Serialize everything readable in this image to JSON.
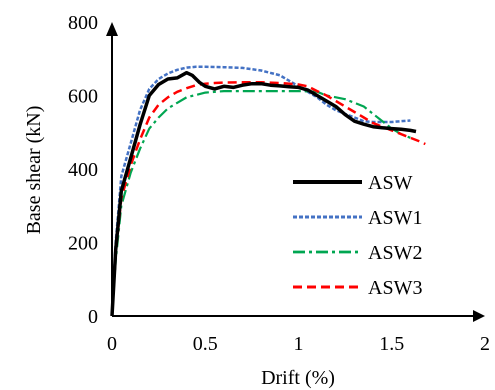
{
  "chart_data": {
    "type": "line",
    "xlabel": "Drift (%)",
    "ylabel": "Base shear (kN)",
    "xlim": [
      0,
      2
    ],
    "ylim": [
      0,
      800
    ],
    "x_ticks": [
      "0",
      "0.5",
      "1",
      "1.5",
      "2"
    ],
    "y_ticks": [
      "0",
      "200",
      "400",
      "600",
      "800"
    ],
    "x_tick_values": [
      0,
      0.5,
      1,
      1.5,
      2
    ],
    "y_tick_values": [
      0,
      200,
      400,
      600,
      800
    ],
    "grid": false,
    "legend_position": "right",
    "series": [
      {
        "name": "ASW",
        "color": "#000000",
        "style": "solid",
        "x": [
          0,
          0.02,
          0.05,
          0.1,
          0.15,
          0.2,
          0.25,
          0.3,
          0.35,
          0.4,
          0.43,
          0.47,
          0.5,
          0.55,
          0.6,
          0.65,
          0.7,
          0.75,
          0.8,
          0.85,
          0.9,
          0.95,
          1.0,
          1.05,
          1.1,
          1.15,
          1.2,
          1.25,
          1.3,
          1.35,
          1.4,
          1.45,
          1.5,
          1.55,
          1.6,
          1.63
        ],
        "y": [
          0,
          180,
          340,
          430,
          520,
          600,
          630,
          645,
          648,
          662,
          655,
          635,
          625,
          618,
          625,
          622,
          628,
          632,
          632,
          628,
          626,
          624,
          622,
          615,
          600,
          585,
          570,
          548,
          530,
          522,
          515,
          512,
          510,
          508,
          505,
          502
        ]
      },
      {
        "name": "ASW1",
        "color": "#4472c4",
        "style": "dotted",
        "x": [
          0,
          0.02,
          0.05,
          0.1,
          0.15,
          0.2,
          0.25,
          0.3,
          0.35,
          0.4,
          0.45,
          0.5,
          0.6,
          0.7,
          0.8,
          0.9,
          1.0,
          1.05,
          1.1,
          1.15,
          1.2,
          1.25,
          1.3,
          1.35,
          1.4,
          1.45,
          1.5,
          1.55,
          1.6
        ],
        "y": [
          0,
          200,
          380,
          470,
          560,
          618,
          645,
          660,
          670,
          676,
          678,
          678,
          677,
          675,
          668,
          655,
          625,
          610,
          595,
          575,
          560,
          550,
          540,
          530,
          528,
          528,
          528,
          530,
          532
        ]
      },
      {
        "name": "ASW2",
        "color": "#00a651",
        "style": "dashdot",
        "x": [
          0,
          0.02,
          0.05,
          0.1,
          0.15,
          0.2,
          0.25,
          0.3,
          0.35,
          0.4,
          0.5,
          0.6,
          0.7,
          0.8,
          0.9,
          1.0,
          1.1,
          1.15,
          1.2,
          1.25,
          1.3,
          1.35,
          1.4,
          1.45,
          1.5,
          1.55,
          1.6
        ],
        "y": [
          0,
          150,
          300,
          390,
          455,
          510,
          540,
          565,
          580,
          595,
          608,
          612,
          612,
          612,
          612,
          612,
          610,
          600,
          595,
          590,
          580,
          570,
          550,
          530,
          510,
          495,
          485
        ]
      },
      {
        "name": "ASW3",
        "color": "#ff0000",
        "style": "dashed",
        "x": [
          0,
          0.02,
          0.05,
          0.1,
          0.15,
          0.2,
          0.25,
          0.3,
          0.35,
          0.4,
          0.45,
          0.5,
          0.55,
          0.6,
          0.7,
          0.8,
          0.9,
          1.0,
          1.05,
          1.1,
          1.15,
          1.2,
          1.25,
          1.3,
          1.35,
          1.4,
          1.45,
          1.5,
          1.55,
          1.6,
          1.65,
          1.68
        ],
        "y": [
          0,
          170,
          320,
          410,
          480,
          540,
          575,
          595,
          610,
          620,
          628,
          632,
          634,
          635,
          636,
          636,
          634,
          630,
          625,
          612,
          600,
          585,
          570,
          555,
          540,
          525,
          515,
          505,
          495,
          485,
          475,
          468
        ]
      }
    ]
  }
}
